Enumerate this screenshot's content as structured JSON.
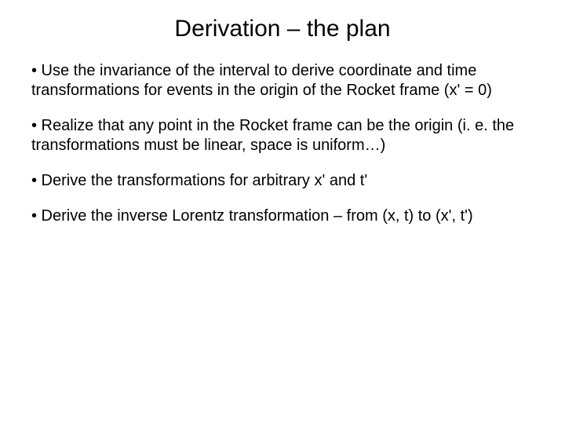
{
  "title": "Derivation – the plan",
  "bullets": [
    "• Use the invariance of the interval to derive coordinate and time transformations for events in the origin of the Rocket frame (x' = 0)",
    "• Realize that any point in the Rocket frame can be the origin (i. e. the transformations must be linear, space is uniform…)",
    "• Derive the transformations for arbitrary x' and t'",
    "• Derive the inverse Lorentz transformation – from (x, t) to (x', t')"
  ],
  "style": {
    "background_color": "#ffffff",
    "text_color": "#000000",
    "title_fontsize": 30,
    "body_fontsize": 20,
    "font_family": "Arial"
  }
}
